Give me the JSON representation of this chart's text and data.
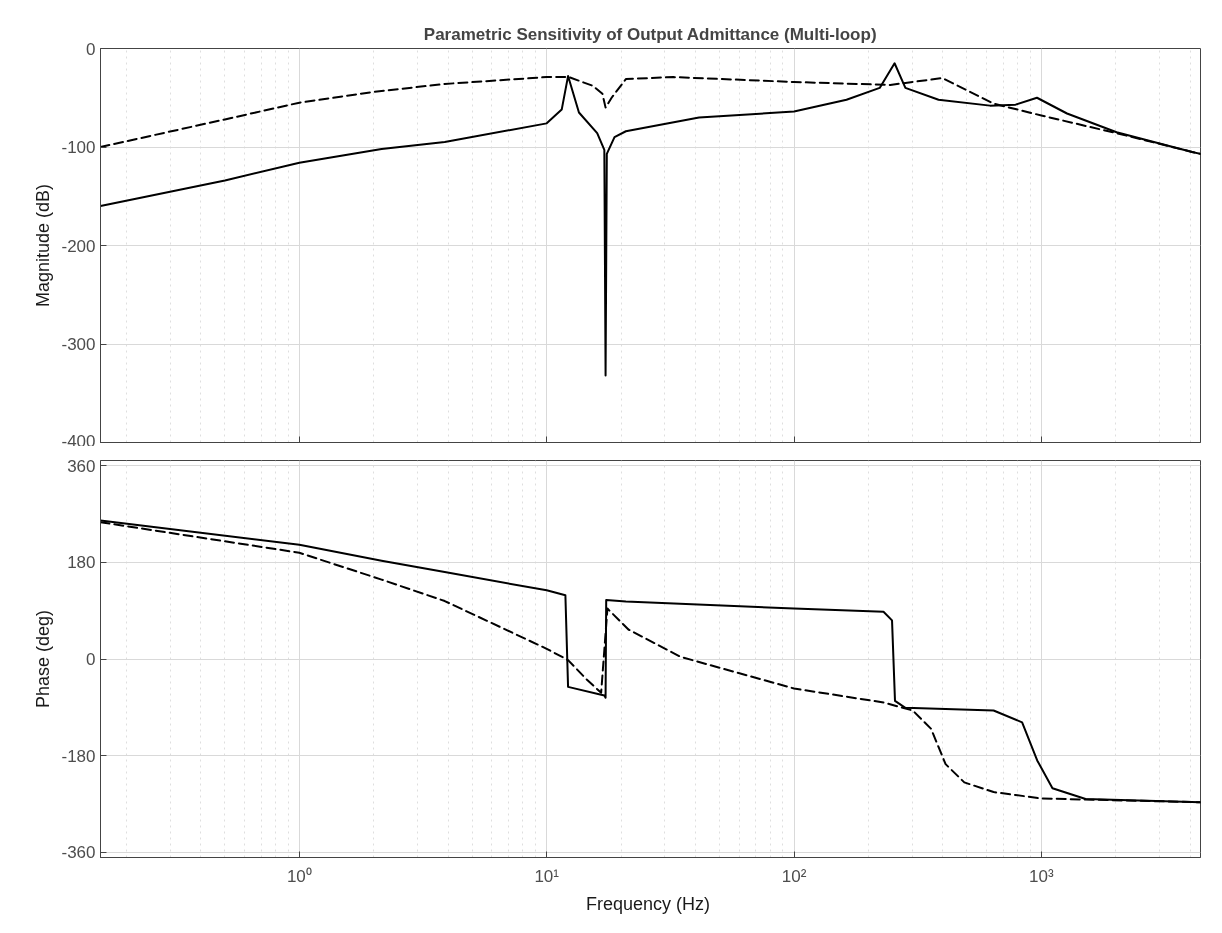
{
  "chart_data": [
    {
      "type": "line",
      "title": "Parametric Sensitivity of Output Admittance (Multi-loop)",
      "ylabel": "Magnitude (dB)",
      "log": "x",
      "grid": true,
      "tick_labels": "y",
      "xlim": [
        0.157,
        4400
      ],
      "xticks": [
        {
          "value": 1,
          "label": null
        },
        {
          "value": 10,
          "label": null
        },
        {
          "value": 100,
          "label": null
        },
        {
          "value": 1000,
          "label": null
        }
      ],
      "ylim": [
        -400,
        0
      ],
      "yticks": [
        -400,
        -300,
        -200,
        -100,
        0
      ],
      "series": [
        {
          "color": "#000000",
          "line_style": "solid",
          "x": [
            0.157,
            0.5,
            1,
            2.15,
            3.87,
            10,
            11.5,
            12.2,
            13.5,
            16,
            17.1,
            17.3,
            17.5,
            18.8,
            20.9,
            41.3,
            100,
            163,
            222,
            255,
            282,
            384,
            620,
            787,
            960,
            1270,
            2015,
            4070,
            4400
          ],
          "values": [
            -160,
            -134,
            -116,
            -102,
            -95,
            -76,
            -62,
            -28,
            -65,
            -86,
            -103,
            -332,
            -107,
            -90,
            -84,
            -70,
            -64,
            -52,
            -40,
            -15,
            -40,
            -52,
            -58,
            -57,
            -50,
            -66,
            -85,
            -105,
            -107
          ]
        },
        {
          "color": "#000000",
          "line_style": "dashed",
          "x": [
            0.157,
            0.5,
            1,
            2,
            3.87,
            10,
            12.3,
            15.4,
            16.8,
            17.3,
            18.3,
            20.9,
            32.5,
            100,
            245,
            398,
            641,
            1000,
            2015,
            4070,
            4400
          ],
          "values": [
            -100,
            -72,
            -55,
            -44,
            -36,
            -29,
            -29,
            -38,
            -46,
            -60,
            -50,
            -31,
            -29,
            -34,
            -37,
            -30,
            -56,
            -68,
            -86,
            -105,
            -107
          ]
        }
      ]
    },
    {
      "type": "line",
      "ylabel": "Phase (deg)",
      "xlabel": "Frequency  (Hz)",
      "log": "x",
      "grid": true,
      "xlim": [
        0.157,
        4400
      ],
      "xticks": [
        {
          "value": 1,
          "label": "10⁰"
        },
        {
          "value": 10,
          "label": "10¹"
        },
        {
          "value": 100,
          "label": "10²"
        },
        {
          "value": 1000,
          "label": "10³"
        }
      ],
      "ylim": [
        -370,
        370
      ],
      "yticks": [
        -360,
        -180,
        0,
        180,
        360
      ],
      "series": [
        {
          "color": "#000000",
          "line_style": "solid",
          "x": [
            0.157,
            1,
            2.15,
            3.87,
            10,
            11.9,
            12.2,
            17.1,
            17.3,
            17.4,
            20.9,
            100,
            230,
            249,
            256,
            282,
            641,
            836,
            962,
            1109,
            1510,
            4400
          ],
          "values": [
            258,
            213,
            183,
            162,
            128,
            119,
            -52,
            -68,
            -72,
            110,
            107,
            94,
            88,
            72,
            -78,
            -91,
            -96,
            -118,
            -189,
            -241,
            -261,
            -267
          ]
        },
        {
          "color": "#000000",
          "line_style": "dashed",
          "x": [
            0.157,
            1,
            2.15,
            3.87,
            10,
            12.2,
            14.5,
            16.6,
            17.6,
            21.4,
            34.8,
            100,
            230,
            302,
            358,
            410,
            488,
            641,
            1000,
            4400
          ],
          "values": [
            255,
            198,
            148,
            108,
            19,
            -2,
            -38,
            -63,
            94,
            55,
            4,
            -55,
            -81,
            -96,
            -130,
            -196,
            -230,
            -248,
            -260,
            -267
          ]
        }
      ]
    }
  ]
}
